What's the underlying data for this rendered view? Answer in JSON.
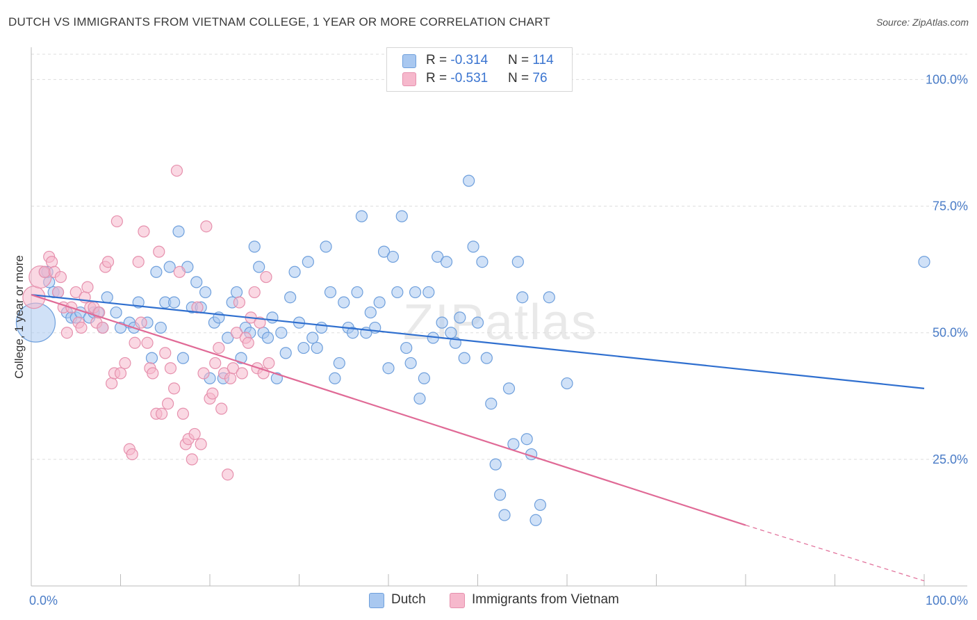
{
  "title": "DUTCH VS IMMIGRANTS FROM VIETNAM COLLEGE, 1 YEAR OR MORE CORRELATION CHART",
  "source": "Source: ZipAtlas.com",
  "watermark": "ZIPatlas",
  "legend": {
    "dutch": {
      "r_label": "R = ",
      "r_value": "-0.314",
      "n_label": "N = ",
      "n_value": "114"
    },
    "vietnam": {
      "r_label": "R = ",
      "r_value": "-0.531",
      "n_label": "N = ",
      "n_value": "76"
    }
  },
  "bottom_legend": {
    "dutch": "Dutch",
    "vietnam": "Immigrants from Vietnam"
  },
  "colors": {
    "dutch_fill": "#a9c8f0",
    "dutch_stroke": "#6e9fdc",
    "dutch_line": "#2f6fcf",
    "vietnam_fill": "#f6b8cc",
    "vietnam_stroke": "#e690ad",
    "vietnam_line": "#e06a96",
    "tick_color": "#4a7cc7",
    "grid": "#dddddd"
  },
  "chart_data": {
    "type": "scatter",
    "title": "DUTCH VS IMMIGRANTS FROM VIETNAM COLLEGE, 1 YEAR OR MORE CORRELATION CHART",
    "xlabel": "",
    "ylabel": "College, 1 year or more",
    "xlim": [
      0,
      100
    ],
    "ylim": [
      0,
      105
    ],
    "x_tick_labels": [
      "0.0%",
      "100.0%"
    ],
    "y_ticks": [
      25,
      50,
      75,
      100
    ],
    "y_tick_labels": [
      "25.0%",
      "50.0%",
      "75.0%",
      "100.0%"
    ],
    "grid": true,
    "series": [
      {
        "name": "Dutch",
        "trend": {
          "x": [
            0,
            100
          ],
          "y": [
            57.5,
            39
          ]
        },
        "points": [
          [
            0.5,
            52,
            3.5
          ],
          [
            1.5,
            62,
            1
          ],
          [
            2,
            60,
            1
          ],
          [
            1.8,
            62,
            1
          ],
          [
            2.5,
            58,
            1
          ],
          [
            3,
            58,
            1
          ],
          [
            4,
            54,
            1
          ],
          [
            4.5,
            53,
            1
          ],
          [
            5,
            53,
            1
          ],
          [
            5.5,
            54,
            1
          ],
          [
            6.5,
            53,
            1
          ],
          [
            7,
            54,
            1
          ],
          [
            7.5,
            54,
            1
          ],
          [
            8,
            51,
            1
          ],
          [
            8.5,
            57,
            1
          ],
          [
            9.5,
            54,
            1
          ],
          [
            10,
            51,
            1
          ],
          [
            11,
            52,
            1
          ],
          [
            11.5,
            51,
            1
          ],
          [
            12,
            56,
            1
          ],
          [
            13,
            52,
            1
          ],
          [
            13.5,
            45,
            1
          ],
          [
            14,
            62,
            1
          ],
          [
            14.5,
            51,
            1
          ],
          [
            15,
            56,
            1
          ],
          [
            15.5,
            63,
            1
          ],
          [
            16,
            56,
            1
          ],
          [
            16.5,
            70,
            1
          ],
          [
            17,
            45,
            1
          ],
          [
            17.5,
            63,
            1
          ],
          [
            18,
            55,
            1
          ],
          [
            18.5,
            60,
            1
          ],
          [
            19,
            55,
            1
          ],
          [
            19.5,
            58,
            1
          ],
          [
            20,
            41,
            1
          ],
          [
            20.5,
            52,
            1
          ],
          [
            21,
            53,
            1
          ],
          [
            21.5,
            41,
            1
          ],
          [
            22,
            49,
            1
          ],
          [
            22.5,
            56,
            1
          ],
          [
            23,
            58,
            1
          ],
          [
            23.5,
            45,
            1
          ],
          [
            24,
            51,
            1
          ],
          [
            24.5,
            50,
            1
          ],
          [
            25,
            67,
            1
          ],
          [
            25.5,
            63,
            1
          ],
          [
            26,
            50,
            1
          ],
          [
            26.5,
            49,
            1
          ],
          [
            27,
            53,
            1
          ],
          [
            27.5,
            41,
            1
          ],
          [
            28,
            50,
            1
          ],
          [
            28.5,
            46,
            1
          ],
          [
            29,
            57,
            1
          ],
          [
            29.5,
            62,
            1
          ],
          [
            30,
            52,
            1
          ],
          [
            30.5,
            47,
            1
          ],
          [
            31,
            64,
            1
          ],
          [
            31.5,
            49,
            1
          ],
          [
            32,
            47,
            1
          ],
          [
            32.5,
            51,
            1
          ],
          [
            33,
            67,
            1
          ],
          [
            33.5,
            58,
            1
          ],
          [
            34,
            41,
            1
          ],
          [
            34.5,
            44,
            1
          ],
          [
            35,
            56,
            1
          ],
          [
            35.5,
            51,
            1
          ],
          [
            36,
            50,
            1
          ],
          [
            36.5,
            58,
            1
          ],
          [
            37,
            73,
            1
          ],
          [
            37.5,
            50,
            1
          ],
          [
            38,
            54,
            1
          ],
          [
            38.5,
            51,
            1
          ],
          [
            39,
            56,
            1
          ],
          [
            39.5,
            66,
            1
          ],
          [
            40,
            43,
            1
          ],
          [
            40.5,
            65,
            1
          ],
          [
            41,
            58,
            1
          ],
          [
            41.5,
            73,
            1
          ],
          [
            42,
            47,
            1
          ],
          [
            42.5,
            44,
            1
          ],
          [
            43,
            58,
            1
          ],
          [
            43.5,
            37,
            1
          ],
          [
            44,
            41,
            1
          ],
          [
            44.5,
            58,
            1
          ],
          [
            45,
            49,
            1
          ],
          [
            45.5,
            65,
            1
          ],
          [
            46,
            52,
            1
          ],
          [
            46.5,
            64,
            1
          ],
          [
            47,
            50,
            1
          ],
          [
            47.5,
            48,
            1
          ],
          [
            48,
            53,
            1
          ],
          [
            48.5,
            45,
            1
          ],
          [
            49,
            80,
            1
          ],
          [
            49.5,
            67,
            1
          ],
          [
            50,
            52,
            1
          ],
          [
            50.5,
            64,
            1
          ],
          [
            51,
            45,
            1
          ],
          [
            51.5,
            36,
            1
          ],
          [
            52,
            24,
            1
          ],
          [
            52.5,
            18,
            1
          ],
          [
            53,
            14,
            1
          ],
          [
            53.5,
            39,
            1
          ],
          [
            54,
            28,
            1
          ],
          [
            54.5,
            64,
            1
          ],
          [
            55,
            57,
            1
          ],
          [
            55.5,
            29,
            1
          ],
          [
            56,
            26,
            1
          ],
          [
            56.5,
            13,
            1
          ],
          [
            57,
            16,
            1
          ],
          [
            58,
            57,
            1
          ],
          [
            60,
            40,
            1
          ],
          [
            100,
            64,
            1
          ]
        ]
      },
      {
        "name": "Immigrants from Vietnam",
        "trend": {
          "x": [
            0,
            80
          ],
          "y": [
            57.5,
            12
          ]
        },
        "trend_dashed": {
          "x": [
            80,
            100
          ],
          "y": [
            12,
            1
          ]
        },
        "points": [
          [
            0.3,
            57,
            2
          ],
          [
            1,
            61,
            2
          ],
          [
            1.5,
            62,
            1
          ],
          [
            2,
            65,
            1
          ],
          [
            2.3,
            64,
            1
          ],
          [
            2.6,
            62,
            1
          ],
          [
            3,
            58,
            1
          ],
          [
            3.3,
            61,
            1
          ],
          [
            3.6,
            55,
            1
          ],
          [
            4,
            50,
            1
          ],
          [
            4.5,
            55,
            1
          ],
          [
            5,
            58,
            1
          ],
          [
            5.3,
            52,
            1
          ],
          [
            5.6,
            51,
            1
          ],
          [
            6,
            57,
            1
          ],
          [
            6.3,
            59,
            1
          ],
          [
            6.6,
            55,
            1
          ],
          [
            7,
            55,
            1
          ],
          [
            7.3,
            52,
            1
          ],
          [
            7.6,
            54,
            1
          ],
          [
            8,
            51,
            1
          ],
          [
            8.3,
            63,
            1
          ],
          [
            8.6,
            64,
            1
          ],
          [
            9,
            40,
            1
          ],
          [
            9.3,
            42,
            1
          ],
          [
            9.6,
            72,
            1
          ],
          [
            10,
            42,
            1
          ],
          [
            10.5,
            44,
            1
          ],
          [
            11,
            27,
            1
          ],
          [
            11.3,
            26,
            1
          ],
          [
            11.6,
            48,
            1
          ],
          [
            12,
            64,
            1
          ],
          [
            12.3,
            52,
            1
          ],
          [
            12.6,
            70,
            1
          ],
          [
            13,
            48,
            1
          ],
          [
            13.3,
            43,
            1
          ],
          [
            13.6,
            42,
            1
          ],
          [
            14,
            34,
            1
          ],
          [
            14.3,
            66,
            1
          ],
          [
            14.6,
            34,
            1
          ],
          [
            15,
            46,
            1
          ],
          [
            15.3,
            36,
            1
          ],
          [
            15.6,
            43,
            1
          ],
          [
            16,
            39,
            1
          ],
          [
            16.3,
            82,
            1
          ],
          [
            16.6,
            62,
            1
          ],
          [
            17,
            34,
            1
          ],
          [
            17.3,
            28,
            1
          ],
          [
            17.6,
            29,
            1
          ],
          [
            18,
            25,
            1
          ],
          [
            18.3,
            30,
            1
          ],
          [
            18.6,
            55,
            1
          ],
          [
            19,
            28,
            1
          ],
          [
            19.3,
            42,
            1
          ],
          [
            19.6,
            71,
            1
          ],
          [
            20,
            37,
            1
          ],
          [
            20.3,
            38,
            1
          ],
          [
            20.6,
            44,
            1
          ],
          [
            21,
            47,
            1
          ],
          [
            21.3,
            35,
            1
          ],
          [
            21.6,
            42,
            1
          ],
          [
            22,
            22,
            1
          ],
          [
            22.3,
            41,
            1
          ],
          [
            22.6,
            43,
            1
          ],
          [
            23,
            50,
            1
          ],
          [
            23.3,
            56,
            1
          ],
          [
            23.6,
            42,
            1
          ],
          [
            24,
            49,
            1
          ],
          [
            24.3,
            48,
            1
          ],
          [
            24.6,
            53,
            1
          ],
          [
            25,
            58,
            1
          ],
          [
            25.3,
            43,
            1
          ],
          [
            25.6,
            52,
            1
          ],
          [
            26,
            42,
            1
          ],
          [
            26.3,
            61,
            1
          ],
          [
            26.6,
            44,
            1
          ]
        ]
      }
    ]
  }
}
